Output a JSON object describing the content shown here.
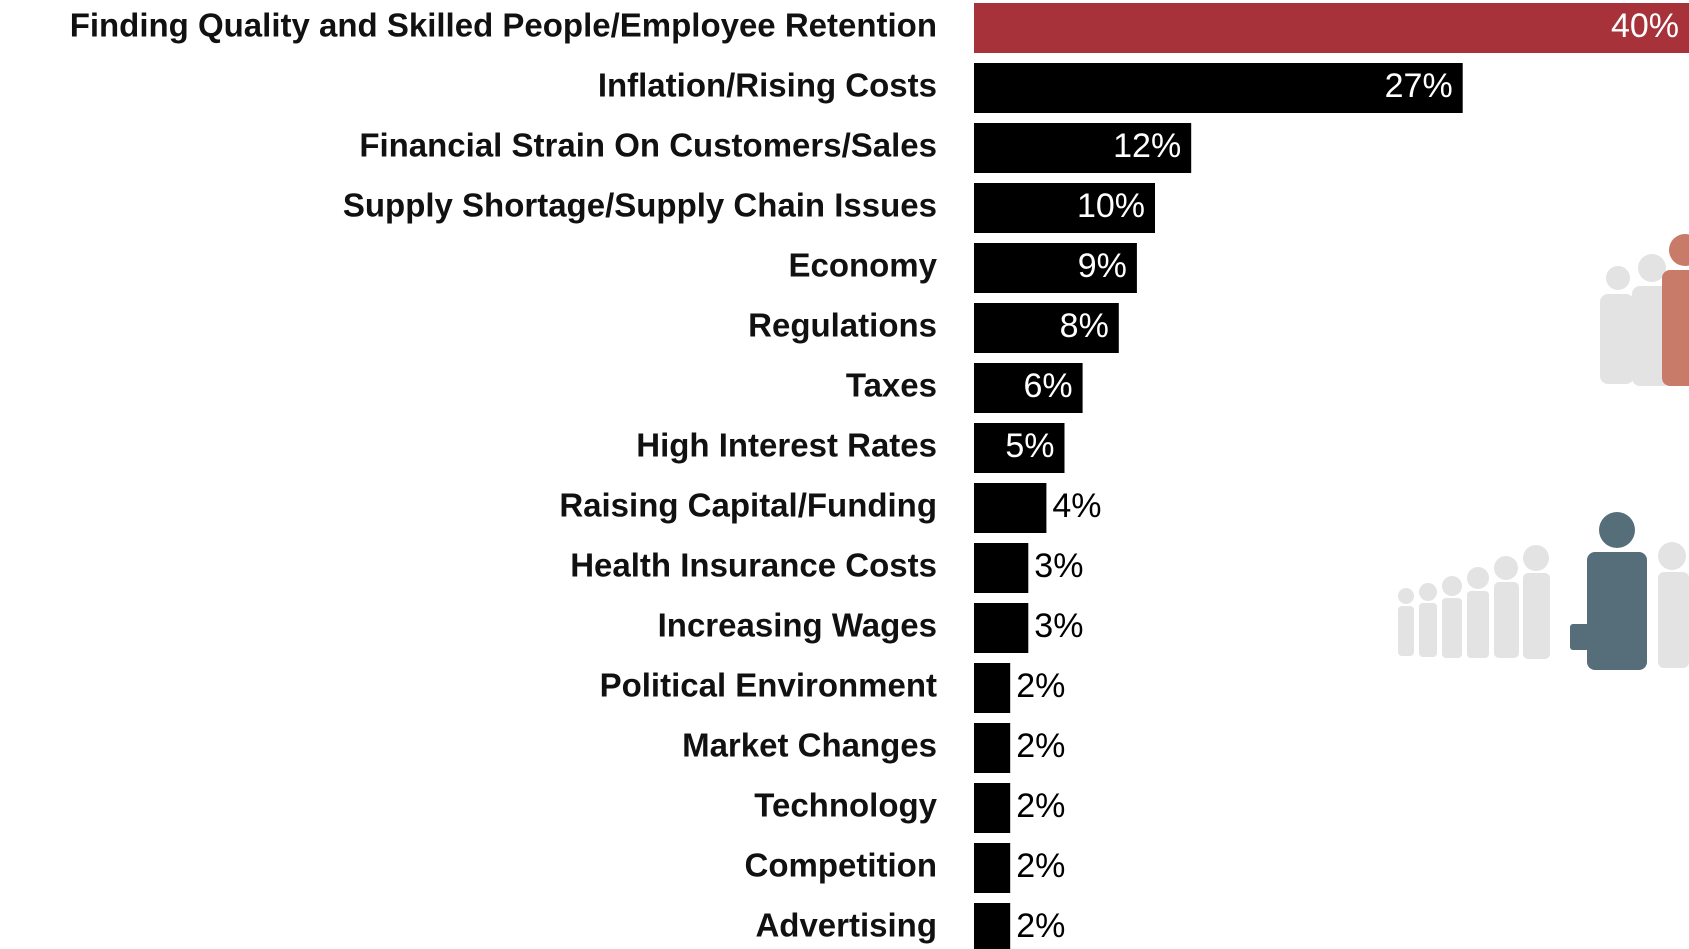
{
  "chart_data": {
    "type": "bar",
    "orientation": "horizontal",
    "categories": [
      "Finding Quality and Skilled People/Employee Retention",
      "Inflation/Rising Costs",
      "Financial Strain On Customers/Sales",
      "Supply Shortage/Supply Chain Issues",
      "Economy",
      "Regulations",
      "Taxes",
      "High Interest Rates",
      "Raising Capital/Funding",
      "Health Insurance Costs",
      "Increasing Wages",
      "Political Environment",
      "Market Changes",
      "Technology",
      "Competition",
      "Advertising"
    ],
    "values": [
      40,
      27,
      12,
      10,
      9,
      8,
      6,
      5,
      4,
      3,
      3,
      2,
      2,
      2,
      2,
      2
    ],
    "value_labels": [
      "40%",
      "27%",
      "12%",
      "10%",
      "9%",
      "8%",
      "6%",
      "5%",
      "4%",
      "3%",
      "3%",
      "2%",
      "2%",
      "2%",
      "2%",
      "2%"
    ],
    "colors": [
      "#a8323a",
      "#000000",
      "#000000",
      "#000000",
      "#000000",
      "#000000",
      "#000000",
      "#000000",
      "#000000",
      "#000000",
      "#000000",
      "#000000",
      "#000000",
      "#000000",
      "#000000",
      "#000000"
    ]
  }
}
